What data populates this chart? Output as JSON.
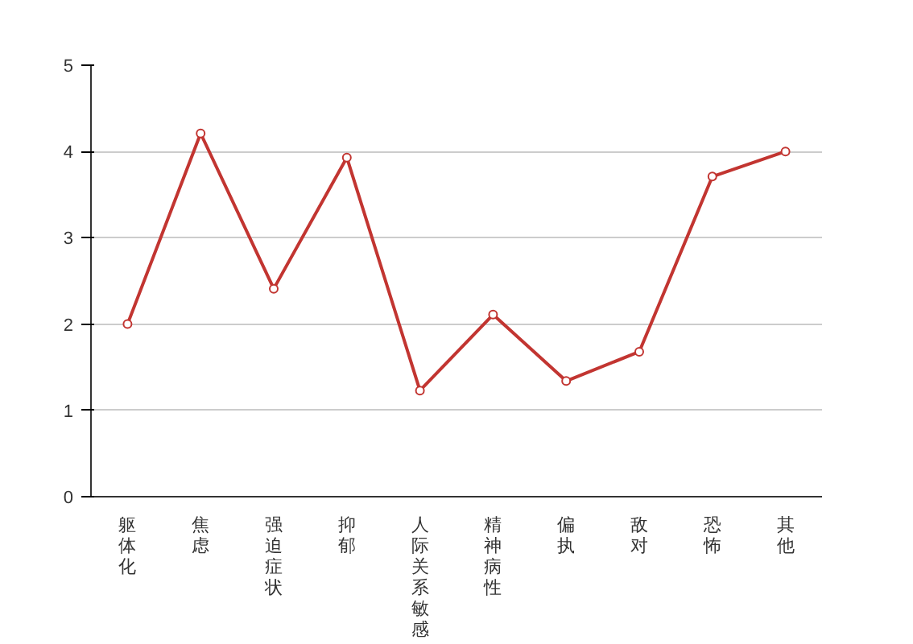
{
  "chart_data": {
    "type": "line",
    "categories": [
      "躯体化",
      "焦虑",
      "强迫症状",
      "抑郁",
      "人际关系敏感",
      "精神病性",
      "偏执",
      "敌对",
      "恐怖",
      "其他"
    ],
    "series": [
      {
        "color": "#c23531",
        "values": [
          2.0,
          4.21,
          2.41,
          3.93,
          1.23,
          2.11,
          1.34,
          1.68,
          3.71,
          4.0
        ]
      }
    ],
    "ylim": [
      0,
      5
    ],
    "yticks": [
      0,
      1,
      2,
      3,
      4,
      5
    ],
    "grid": "y",
    "marker": "circle",
    "line_style": "solid"
  }
}
